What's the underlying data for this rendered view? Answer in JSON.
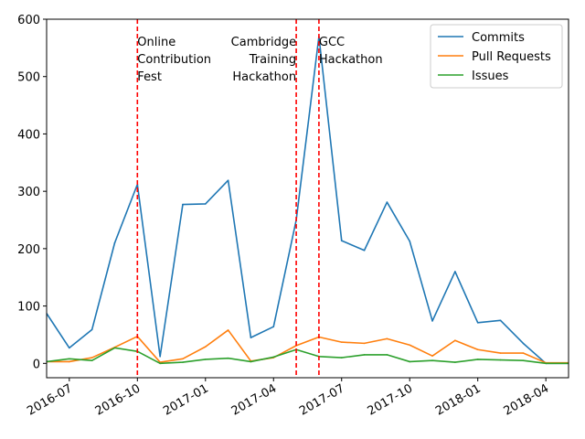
{
  "chart_data": {
    "type": "line",
    "title": "",
    "xlabel": "",
    "ylabel": "",
    "x": [
      "2016-06",
      "2016-07",
      "2016-08",
      "2016-09",
      "2016-10",
      "2016-11",
      "2016-12",
      "2017-01",
      "2017-02",
      "2017-03",
      "2017-04",
      "2017-05",
      "2017-06",
      "2017-07",
      "2017-08",
      "2017-09",
      "2017-10",
      "2017-11",
      "2017-12",
      "2018-01",
      "2018-02",
      "2018-03",
      "2018-04",
      "2018-05"
    ],
    "xlim": [
      "2016-06",
      "2018-05"
    ],
    "ylim": [
      -25,
      600
    ],
    "x_ticks": [
      "2016-07",
      "2016-10",
      "2017-01",
      "2017-04",
      "2017-07",
      "2017-10",
      "2018-01",
      "2018-04"
    ],
    "y_ticks": [
      0,
      100,
      200,
      300,
      400,
      500,
      600
    ],
    "series": [
      {
        "name": "Commits",
        "color": "#1f77b4",
        "values": [
          87,
          27,
          59,
          210,
          312,
          12,
          277,
          278,
          319,
          45,
          64,
          250,
          570,
          214,
          197,
          281,
          213,
          74,
          160,
          71,
          75,
          35,
          0,
          0
        ]
      },
      {
        "name": "Pull Requests",
        "color": "#ff7f0e",
        "values": [
          3,
          3,
          10,
          28,
          47,
          2,
          8,
          29,
          58,
          4,
          10,
          31,
          46,
          37,
          35,
          43,
          32,
          13,
          40,
          24,
          18,
          18,
          1,
          1
        ]
      },
      {
        "name": "Issues",
        "color": "#2ca02c",
        "values": [
          3,
          8,
          5,
          27,
          21,
          0,
          2,
          7,
          9,
          3,
          11,
          24,
          12,
          10,
          15,
          15,
          3,
          5,
          2,
          7,
          6,
          5,
          0,
          0
        ]
      }
    ],
    "events": [
      {
        "date": "2016-10",
        "lines": [
          "Online",
          "Contribution",
          "Fest"
        ],
        "align": "left"
      },
      {
        "date": "2017-05",
        "lines": [
          "Cambridge",
          "Training",
          "Hackathon"
        ],
        "align": "right"
      },
      {
        "date": "2017-06",
        "lines": [
          "GCC",
          "Hackathon"
        ],
        "align": "left"
      }
    ],
    "event_line_color": "#ff0000",
    "grid": false,
    "legend_position": "top-right"
  }
}
